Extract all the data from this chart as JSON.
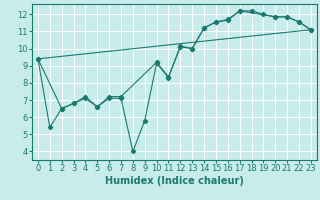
{
  "title": "",
  "xlabel": "Humidex (Indice chaleur)",
  "background_color": "#c8ecec",
  "grid_color": "#ffffff",
  "line_color": "#1a7a6e",
  "xlim": [
    -0.5,
    23.5
  ],
  "ylim": [
    3.5,
    12.6
  ],
  "xticks": [
    0,
    1,
    2,
    3,
    4,
    5,
    6,
    7,
    8,
    9,
    10,
    11,
    12,
    13,
    14,
    15,
    16,
    17,
    18,
    19,
    20,
    21,
    22,
    23
  ],
  "yticks": [
    4,
    5,
    6,
    7,
    8,
    9,
    10,
    11,
    12
  ],
  "curve1_x": [
    0,
    1,
    2,
    3,
    4,
    5,
    6,
    7,
    8,
    9,
    10,
    11,
    12,
    13,
    14,
    15,
    16,
    17,
    18,
    19,
    20,
    21,
    22,
    23
  ],
  "curve1_y": [
    9.4,
    5.4,
    6.5,
    6.8,
    7.1,
    6.6,
    7.1,
    7.1,
    4.0,
    5.8,
    9.15,
    8.3,
    10.15,
    10.0,
    11.2,
    11.55,
    11.7,
    12.2,
    12.2,
    12.0,
    11.85,
    11.85,
    11.55,
    11.1
  ],
  "curve2_x": [
    0,
    2,
    3,
    4,
    5,
    6,
    7,
    10,
    11,
    12,
    13,
    14,
    15,
    16,
    17,
    20,
    21,
    22,
    23
  ],
  "curve2_y": [
    9.4,
    6.5,
    6.8,
    7.2,
    6.6,
    7.2,
    7.2,
    9.2,
    8.35,
    10.1,
    10.0,
    11.2,
    11.55,
    11.65,
    12.2,
    11.85,
    11.85,
    11.55,
    11.1
  ],
  "curve3_x": [
    0,
    23
  ],
  "curve3_y": [
    9.4,
    11.1
  ],
  "marker_style": "D",
  "marker_size": 2.2,
  "font_size": 6,
  "xlabel_fontsize": 7,
  "lw": 0.8
}
